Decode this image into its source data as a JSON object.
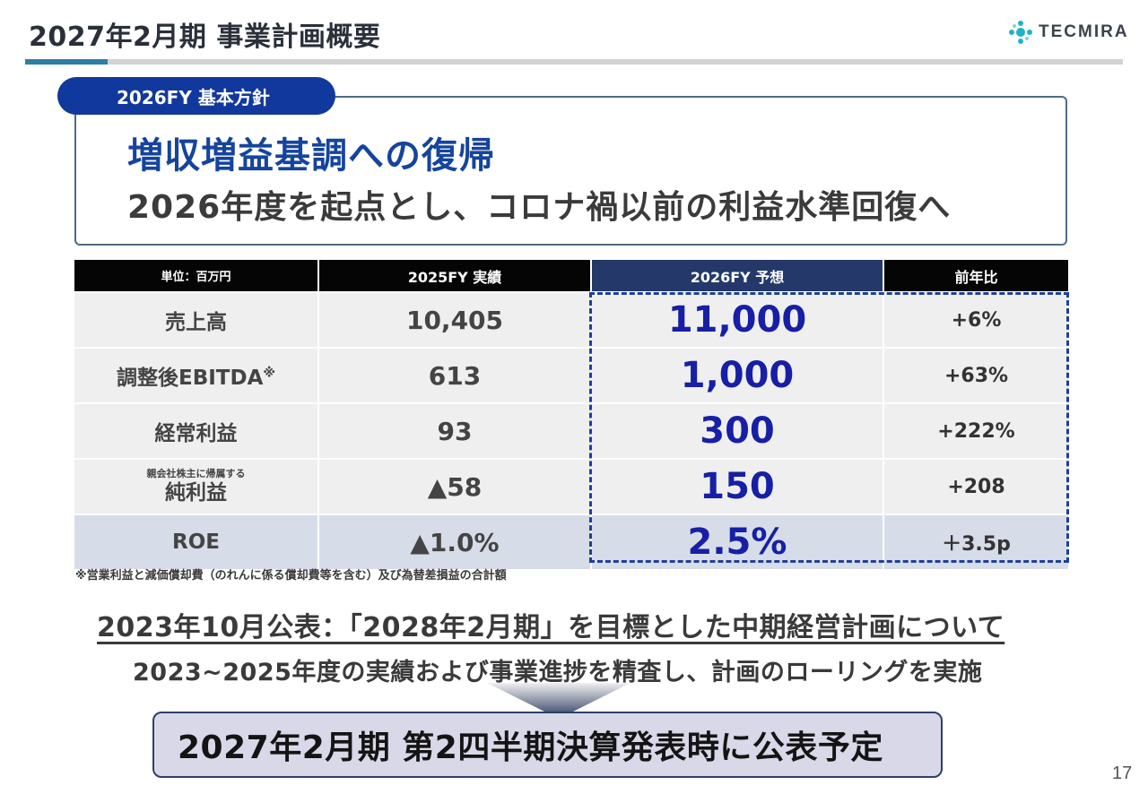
{
  "header": {
    "title": "2027年2月期 事業計画概要",
    "logo_text": "TECMIRA",
    "logo_icon": "tecmira-dots-icon",
    "accent_color": "#2f7fa3"
  },
  "policy": {
    "tag": "2026FY 基本方針",
    "headline": "増収増益基調への復帰",
    "subline": "2026年度を起点とし、コロナ禍以前の利益水準回復へ"
  },
  "table": {
    "headers": {
      "unit": "単位：百万円",
      "actual_2025": "2025FY 実績",
      "forecast_2026": "2026FY 予想",
      "yoy": "前年比"
    },
    "rows": [
      {
        "label": "売上高",
        "label_small": "",
        "label_sup": "",
        "actual_2025": "10,405",
        "forecast_2026": "11,000",
        "yoy": "+6%"
      },
      {
        "label": "調整後EBITDA",
        "label_small": "",
        "label_sup": "※",
        "actual_2025": "613",
        "forecast_2026": "1,000",
        "yoy": "+63%"
      },
      {
        "label": "経常利益",
        "label_small": "",
        "label_sup": "",
        "actual_2025": "93",
        "forecast_2026": "300",
        "yoy": "+222%"
      },
      {
        "label": "純利益",
        "label_small": "親会社株主に帰属する",
        "label_sup": "",
        "actual_2025": "▲58",
        "forecast_2026": "150",
        "yoy": "+208"
      },
      {
        "label": "ROE",
        "label_small": "",
        "label_sup": "",
        "actual_2025": "▲1.0%",
        "forecast_2026": "2.5%",
        "yoy": "＋3.5p"
      }
    ],
    "footnote": "※営業利益と減価償却費（のれんに係る償却費等を含む）及び為替差損益の合計額"
  },
  "plan": {
    "heading": "2023年10月公表：「2028年2月期」を目標とした中期経営計画について",
    "description": "2023~2025年度の実績および事業進捗を精査し、計画のローリングを実施",
    "announcement": "2027年2月期 第2四半期決算発表時に公表予定"
  },
  "page_number": "17",
  "colors": {
    "brand_blue": "#11389c",
    "forecast_blue": "#161fa5",
    "forecast_header": "#24386a"
  }
}
